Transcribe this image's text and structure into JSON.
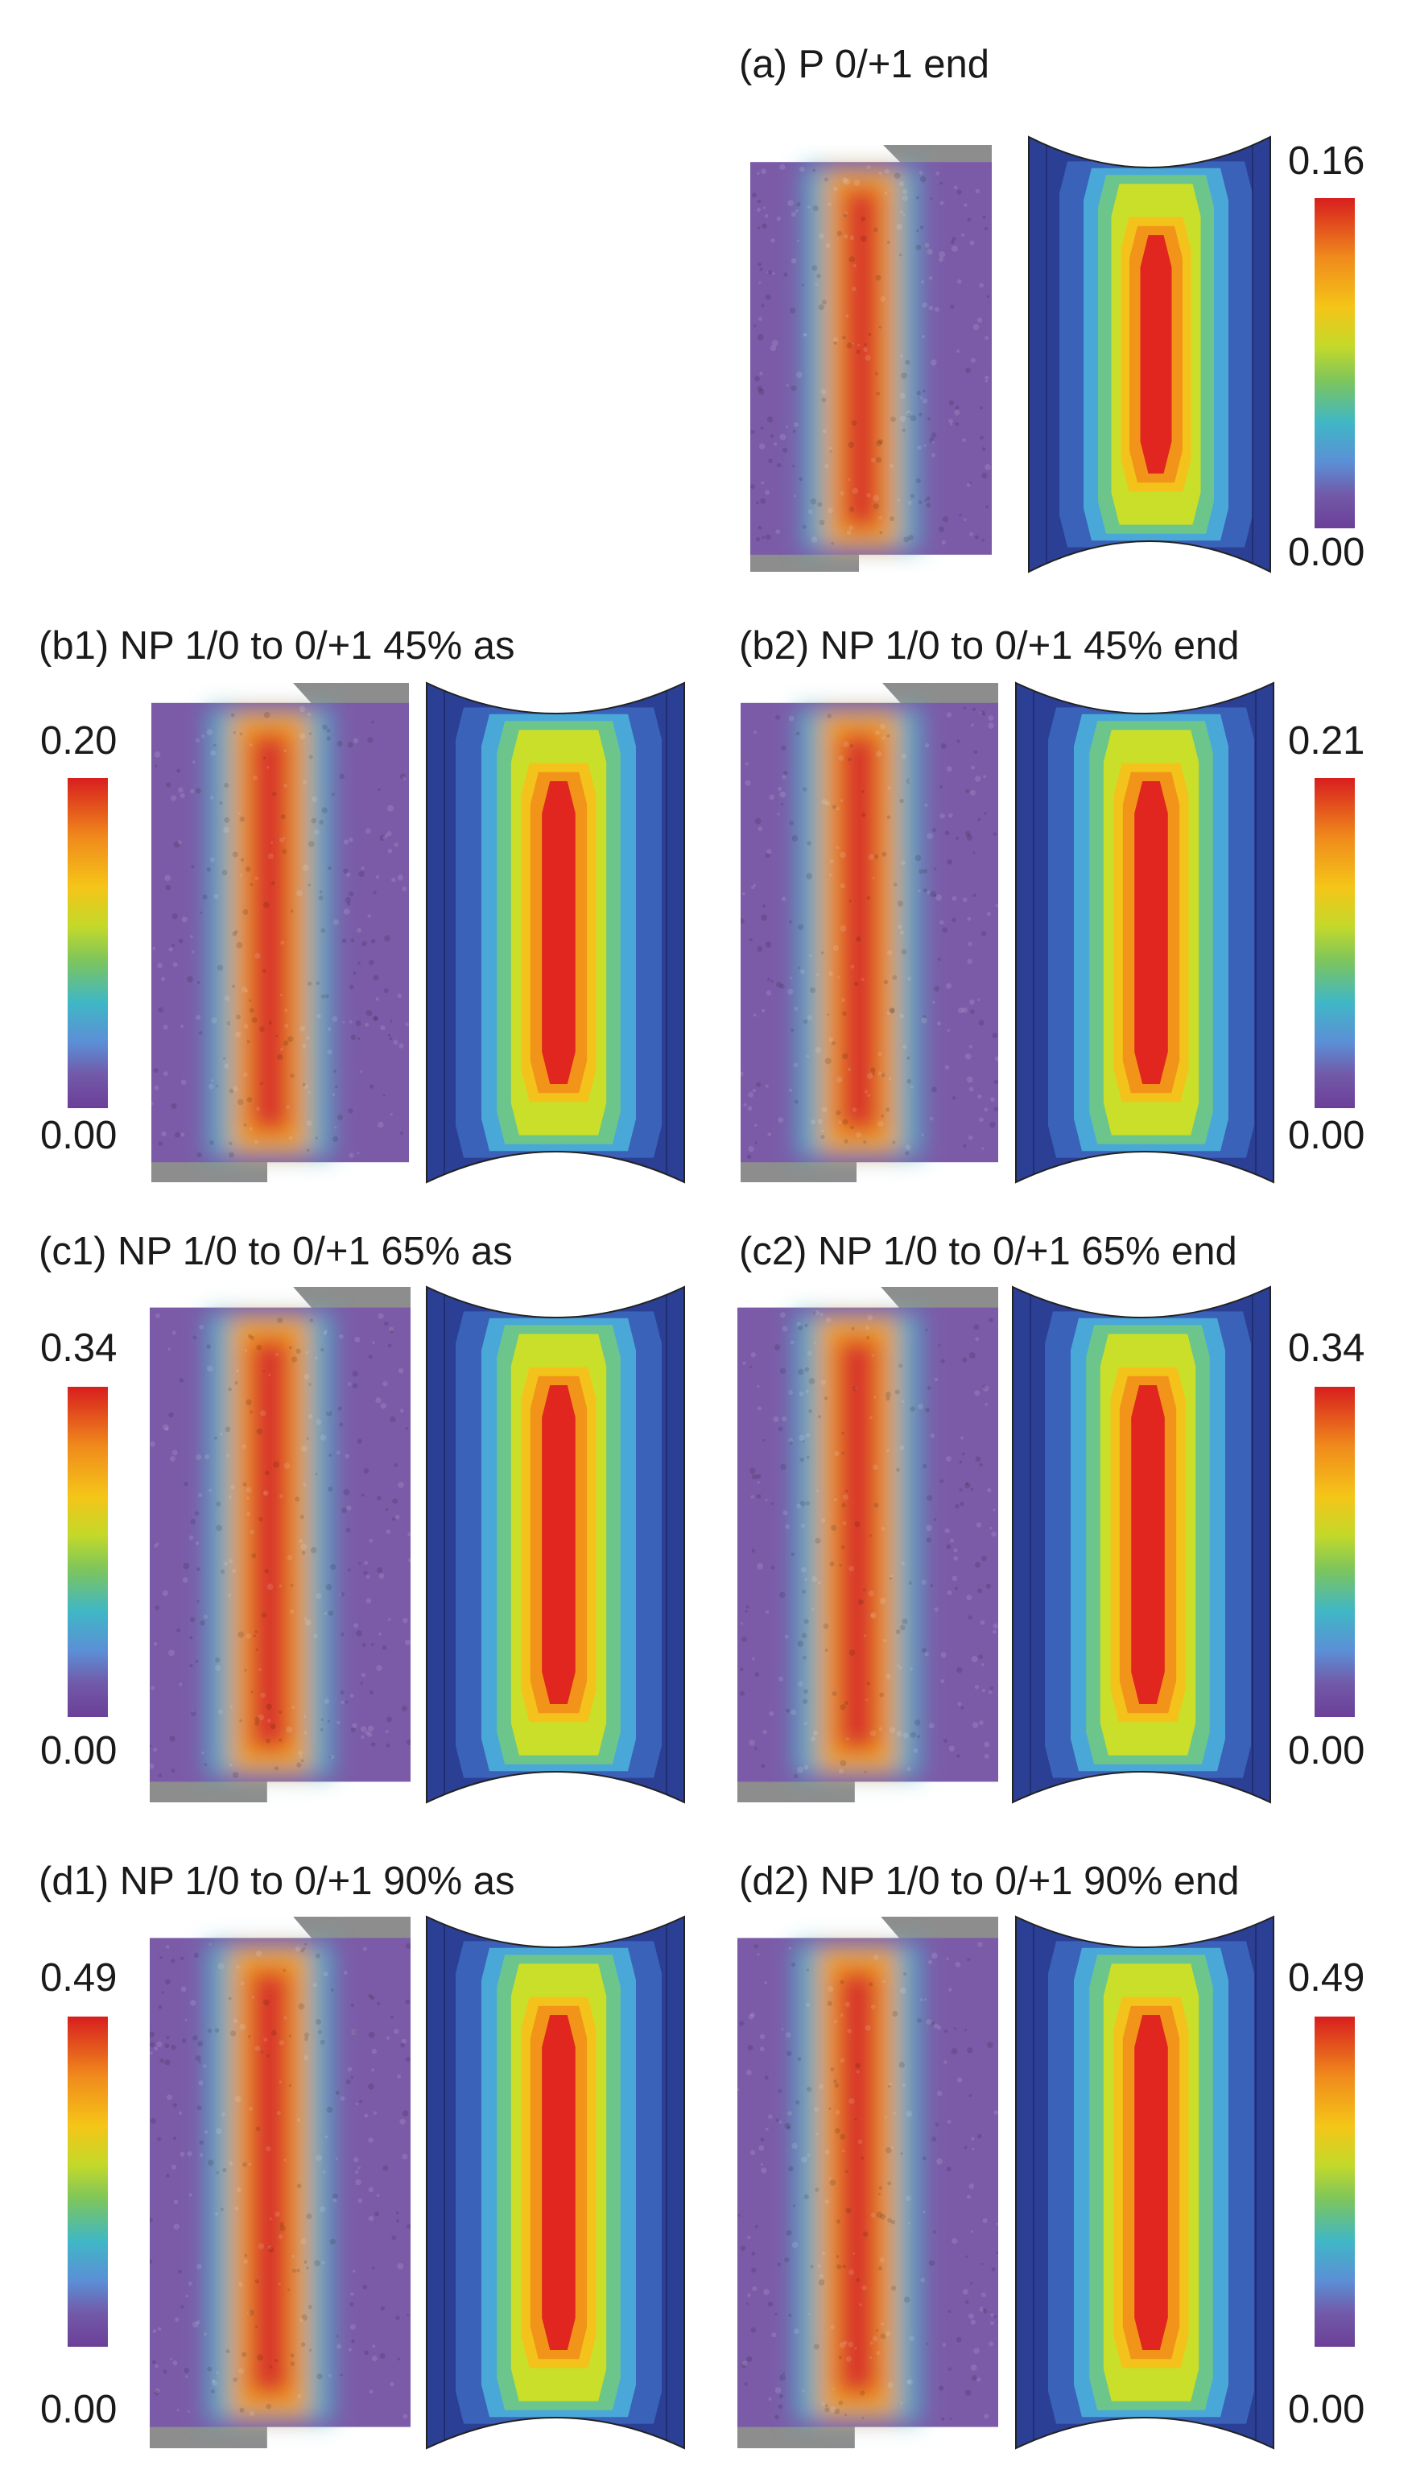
{
  "panels": [
    {
      "id": "a",
      "label": "(a) P 0/+1 end",
      "scale_max": "0.16",
      "scale_min": "0.00",
      "colorbar_side": "right"
    },
    {
      "id": "b1",
      "label": "(b1) NP 1/0 to 0/+1 45% as",
      "scale_max": "0.20",
      "scale_min": "0.00",
      "colorbar_side": "left"
    },
    {
      "id": "b2",
      "label": "(b2) NP 1/0 to 0/+1 45% end",
      "scale_max": "0.21",
      "scale_min": "0.00",
      "colorbar_side": "right"
    },
    {
      "id": "c1",
      "label": "(c1) NP 1/0 to 0/+1 65% as",
      "scale_max": "0.34",
      "scale_min": "0.00",
      "colorbar_side": "left"
    },
    {
      "id": "c2",
      "label": "(c2) NP 1/0 to 0/+1 65% end",
      "scale_max": "0.34",
      "scale_min": "0.00",
      "colorbar_side": "right"
    },
    {
      "id": "d1",
      "label": "(d1) NP 1/0 to 0/+1 90% as",
      "scale_max": "0.49",
      "scale_min": "0.00",
      "colorbar_side": "left"
    },
    {
      "id": "d2",
      "label": "(d2) NP 1/0 to 0/+1 90% end",
      "scale_max": "0.49",
      "scale_min": "0.00",
      "colorbar_side": "right"
    }
  ],
  "colorbar_colors": [
    "#d81e1e",
    "#f08a1c",
    "#f5c518",
    "#c3d92a",
    "#7fc65a",
    "#3fb7c6",
    "#5b8fd6",
    "#6b3f98"
  ],
  "contour_colors": {
    "outer": "#2b3f95",
    "band1": "#3a62b8",
    "band2": "#4aa8d8",
    "band3": "#6cc58a",
    "band4": "#c9df2a",
    "band5": "#f3c31b",
    "band6": "#f2941a",
    "core": "#e0261f"
  },
  "dic_colors": {
    "background": "#7b5ba8",
    "halo": "#4fb6c9",
    "band": "#f0a21f",
    "core": "#d8322c",
    "grip": "#8d8d8d"
  }
}
